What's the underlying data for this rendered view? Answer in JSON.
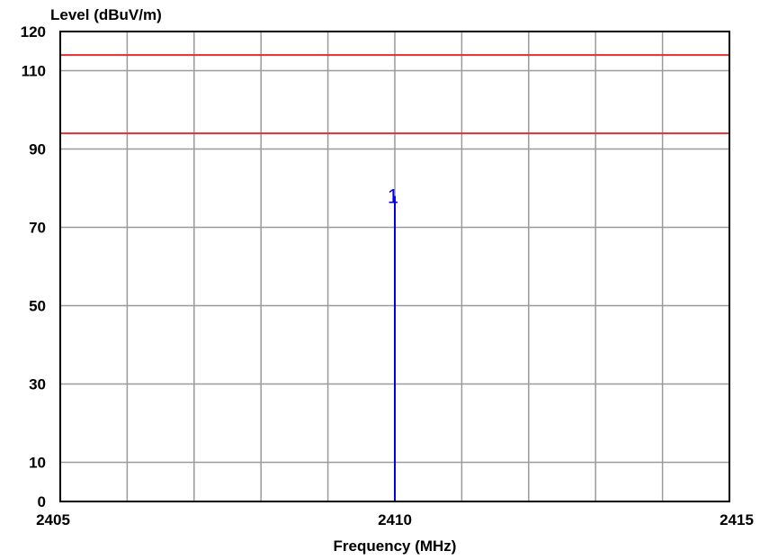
{
  "chart_data": {
    "type": "line",
    "xlabel": "Frequency (MHz)",
    "ylabel": "Level (dBuV/m)",
    "xlim": [
      2405,
      2415
    ],
    "ylim": [
      0,
      120
    ],
    "x_ticks": [
      2405,
      2410,
      2415
    ],
    "y_ticks": [
      0,
      10,
      30,
      50,
      70,
      90,
      110,
      120
    ],
    "x_grid": [
      2405,
      2406,
      2407,
      2408,
      2409,
      2410,
      2411,
      2412,
      2413,
      2414,
      2415
    ],
    "y_grid": [
      0,
      10,
      30,
      50,
      70,
      90,
      110,
      120
    ],
    "grid": true,
    "limit_lines": [
      {
        "y": 114,
        "color": "#e03030"
      },
      {
        "y": 94,
        "color": "#e03030"
      }
    ],
    "series": [
      {
        "color": "#0000e0",
        "x": [
          2410,
          2410
        ],
        "y": [
          0,
          78
        ]
      }
    ],
    "markers": [
      {
        "label": "1",
        "x": 2410,
        "y": 78,
        "color": "#0000e0"
      }
    ]
  }
}
